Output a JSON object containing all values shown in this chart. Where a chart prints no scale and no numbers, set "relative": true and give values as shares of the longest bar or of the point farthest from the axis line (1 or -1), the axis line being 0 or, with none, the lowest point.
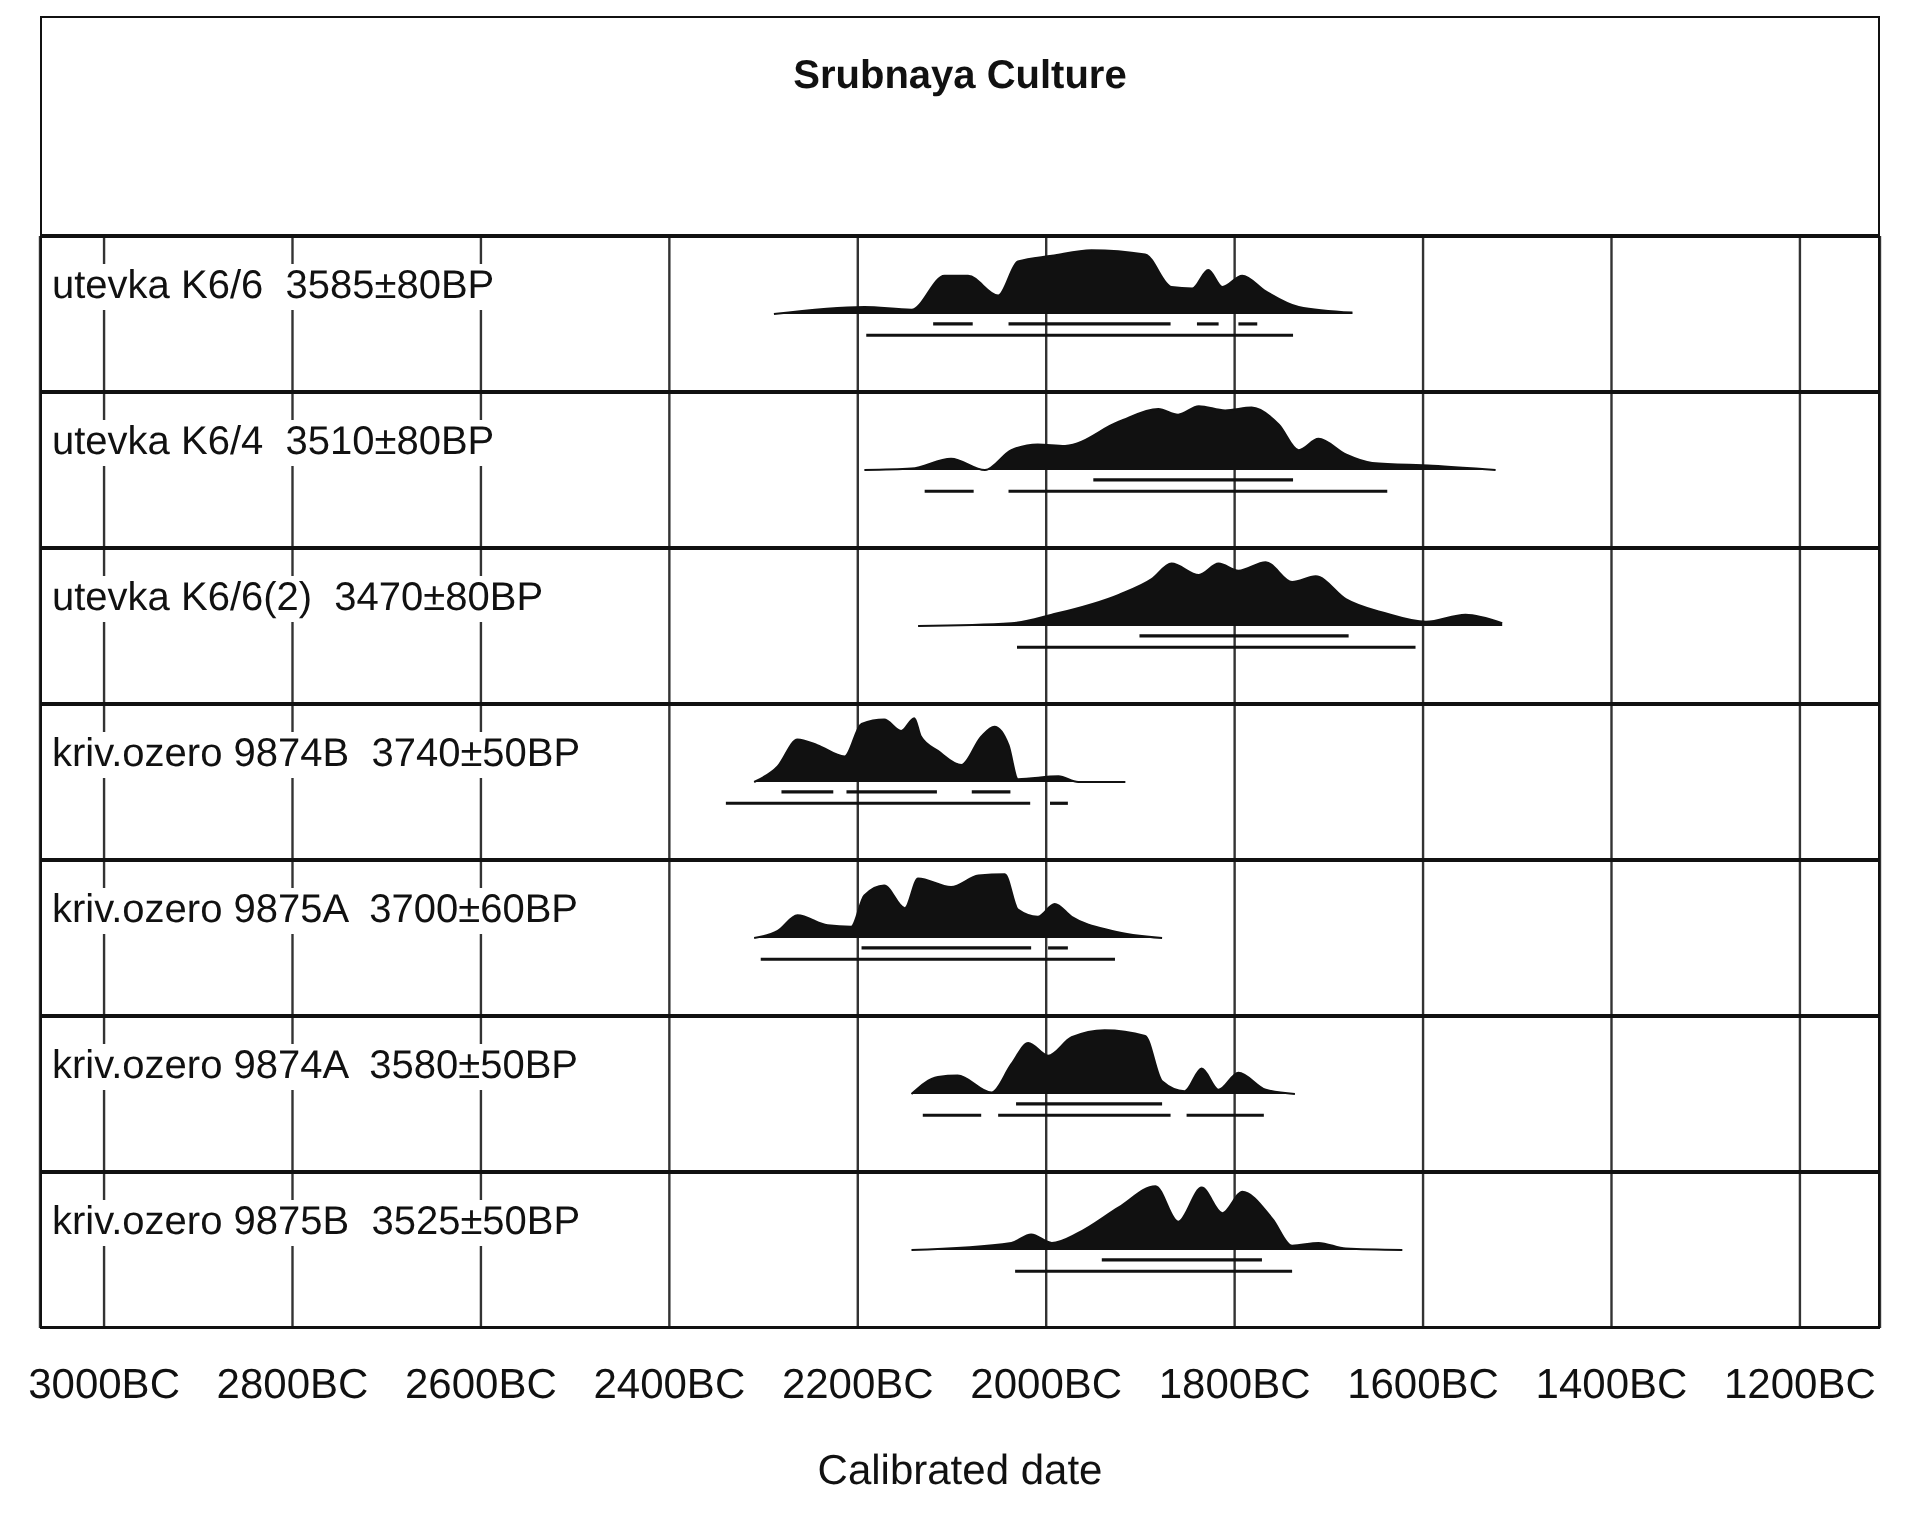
{
  "chart_data": [
    {
      "type": "other",
      "title": "Srubnaya Culture"
    },
    {
      "type": "area",
      "title": "utevka K6/6  3585±80BP",
      "relative": true,
      "grid": "x",
      "tick_labels": false,
      "xlim": [
        -3068,
        -1115
      ],
      "xticks": [
        {
          "value": -3000,
          "label": null
        },
        {
          "value": -2800,
          "label": null
        },
        {
          "value": -2600,
          "label": null
        },
        {
          "value": -2400,
          "label": null
        },
        {
          "value": -2200,
          "label": null
        },
        {
          "value": -2000,
          "label": null
        },
        {
          "value": -1800,
          "label": null
        },
        {
          "value": -1600,
          "label": null
        },
        {
          "value": -1400,
          "label": null
        },
        {
          "value": -1200,
          "label": null
        }
      ],
      "series": [
        {
          "type": "area",
          "color": "#111111",
          "x": [
            -2289,
            -2193,
            -2143,
            -2108,
            -2083,
            -2051,
            -2030,
            -1994,
            -1952,
            -1895,
            -1867,
            -1845,
            -1828,
            -1813,
            -1792,
            -1767,
            -1732,
            -1675
          ],
          "values": [
            0.55,
            0.6,
            0.58,
            0.82,
            0.82,
            0.68,
            0.92,
            0.96,
            1,
            0.97,
            0.74,
            0.73,
            0.86,
            0.74,
            0.82,
            0.71,
            0.6,
            0.56
          ]
        },
        {
          "type": "line",
          "color": "#111111",
          "x": [
            -2120,
            -2078
          ],
          "values": [
            0.48,
            0.48
          ]
        },
        {
          "type": "line",
          "color": "#111111",
          "x": [
            -2040,
            -1868
          ],
          "values": [
            0.48,
            0.48
          ]
        },
        {
          "type": "line",
          "color": "#111111",
          "x": [
            -1840,
            -1817
          ],
          "values": [
            0.48,
            0.48
          ]
        },
        {
          "type": "line",
          "color": "#111111",
          "x": [
            -1796,
            -1776
          ],
          "values": [
            0.48,
            0.48
          ]
        },
        {
          "type": "line",
          "color": "#111111",
          "x": [
            -2191,
            -1738
          ],
          "values": [
            0.4,
            0.4
          ]
        }
      ]
    },
    {
      "type": "area",
      "title": "utevka K6/4  3510±80BP",
      "relative": true,
      "grid": "x",
      "tick_labels": false,
      "xlim": [
        -3068,
        -1115
      ],
      "xticks": [
        {
          "value": -3000,
          "label": null
        },
        {
          "value": -2800,
          "label": null
        },
        {
          "value": -2600,
          "label": null
        },
        {
          "value": -2400,
          "label": null
        },
        {
          "value": -2200,
          "label": null
        },
        {
          "value": -2000,
          "label": null
        },
        {
          "value": -1800,
          "label": null
        },
        {
          "value": -1600,
          "label": null
        },
        {
          "value": -1400,
          "label": null
        },
        {
          "value": -1200,
          "label": null
        }
      ],
      "series": [
        {
          "type": "area",
          "color": "#111111",
          "x": [
            -2193,
            -2143,
            -2101,
            -2065,
            -2037,
            -2009,
            -1980,
            -1923,
            -1881,
            -1860,
            -1838,
            -1810,
            -1782,
            -1753,
            -1732,
            -1711,
            -1682,
            -1654,
            -1590,
            -1523
          ],
          "values": [
            0.55,
            0.56,
            0.63,
            0.55,
            0.69,
            0.73,
            0.72,
            0.89,
            0.98,
            0.94,
            1,
            0.97,
            0.99,
            0.87,
            0.69,
            0.77,
            0.66,
            0.6,
            0.58,
            0.55
          ]
        },
        {
          "type": "line",
          "color": "#111111",
          "x": [
            -1950,
            -1738
          ],
          "values": [
            0.48,
            0.48
          ]
        },
        {
          "type": "line",
          "color": "#111111",
          "x": [
            -2129,
            -2077
          ],
          "values": [
            0.4,
            0.4
          ]
        },
        {
          "type": "line",
          "color": "#111111",
          "x": [
            -2040,
            -1638
          ],
          "values": [
            0.4,
            0.4
          ]
        }
      ]
    },
    {
      "type": "area",
      "title": "utevka K6/6(2)  3470±80BP",
      "relative": true,
      "grid": "x",
      "tick_labels": false,
      "xlim": [
        -3068,
        -1115
      ],
      "xticks": [
        {
          "value": -3000,
          "label": null
        },
        {
          "value": -2800,
          "label": null
        },
        {
          "value": -2600,
          "label": null
        },
        {
          "value": -2400,
          "label": null
        },
        {
          "value": -2200,
          "label": null
        },
        {
          "value": -2000,
          "label": null
        },
        {
          "value": -1800,
          "label": null
        },
        {
          "value": -1600,
          "label": null
        },
        {
          "value": -1400,
          "label": null
        },
        {
          "value": -1200,
          "label": null
        }
      ],
      "series": [
        {
          "type": "area",
          "color": "#111111",
          "x": [
            -2136,
            -2037,
            -1994,
            -1923,
            -1888,
            -1867,
            -1838,
            -1817,
            -1796,
            -1767,
            -1739,
            -1714,
            -1682,
            -1640,
            -1597,
            -1555,
            -1516
          ],
          "values": [
            0.55,
            0.57,
            0.63,
            0.77,
            0.88,
            0.99,
            0.91,
            0.99,
            0.94,
            1,
            0.86,
            0.9,
            0.74,
            0.64,
            0.58,
            0.63,
            0.57
          ]
        },
        {
          "type": "line",
          "color": "#111111",
          "x": [
            -1901,
            -1679
          ],
          "values": [
            0.48,
            0.48
          ]
        },
        {
          "type": "line",
          "color": "#111111",
          "x": [
            -2031,
            -1608
          ],
          "values": [
            0.4,
            0.4
          ]
        }
      ]
    },
    {
      "type": "area",
      "title": "kriv.ozero 9874B  3740±50BP",
      "relative": true,
      "grid": "x",
      "tick_labels": false,
      "xlim": [
        -3068,
        -1115
      ],
      "xticks": [
        {
          "value": -3000,
          "label": null
        },
        {
          "value": -2800,
          "label": null
        },
        {
          "value": -2600,
          "label": null
        },
        {
          "value": -2400,
          "label": null
        },
        {
          "value": -2200,
          "label": null
        },
        {
          "value": -2000,
          "label": null
        },
        {
          "value": -1800,
          "label": null
        },
        {
          "value": -1600,
          "label": null
        },
        {
          "value": -1400,
          "label": null
        },
        {
          "value": -1200,
          "label": null
        }
      ],
      "series": [
        {
          "type": "area",
          "color": "#111111",
          "x": [
            -2310,
            -2285,
            -2264,
            -2243,
            -2214,
            -2196,
            -2172,
            -2154,
            -2140,
            -2133,
            -2115,
            -2090,
            -2069,
            -2055,
            -2040,
            -2030,
            -1987,
            -1966,
            -1916
          ],
          "values": [
            0.55,
            0.66,
            0.85,
            0.81,
            0.73,
            0.96,
            0.99,
            0.91,
            1,
            0.87,
            0.77,
            0.67,
            0.87,
            0.94,
            0.81,
            0.57,
            0.59,
            0.55,
            0.55
          ]
        },
        {
          "type": "line",
          "color": "#111111",
          "x": [
            -2281,
            -2226
          ],
          "values": [
            0.48,
            0.48
          ]
        },
        {
          "type": "line",
          "color": "#111111",
          "x": [
            -2212,
            -2116
          ],
          "values": [
            0.48,
            0.48
          ]
        },
        {
          "type": "line",
          "color": "#111111",
          "x": [
            -2079,
            -2038
          ],
          "values": [
            0.48,
            0.48
          ]
        },
        {
          "type": "line",
          "color": "#111111",
          "x": [
            -2340,
            -2017
          ],
          "values": [
            0.4,
            0.4
          ]
        },
        {
          "type": "line",
          "color": "#111111",
          "x": [
            -1996,
            -1977
          ],
          "values": [
            0.4,
            0.4
          ]
        }
      ]
    },
    {
      "type": "area",
      "title": "kriv.ozero 9875A  3700±60BP",
      "relative": true,
      "grid": "x",
      "tick_labels": false,
      "xlim": [
        -3068,
        -1115
      ],
      "xticks": [
        {
          "value": -3000,
          "label": null
        },
        {
          "value": -2800,
          "label": null
        },
        {
          "value": -2600,
          "label": null
        },
        {
          "value": -2400,
          "label": null
        },
        {
          "value": -2200,
          "label": null
        },
        {
          "value": -2000,
          "label": null
        },
        {
          "value": -1800,
          "label": null
        },
        {
          "value": -1600,
          "label": null
        },
        {
          "value": -1400,
          "label": null
        },
        {
          "value": -1200,
          "label": null
        }
      ],
      "series": [
        {
          "type": "area",
          "color": "#111111",
          "x": [
            -2310,
            -2285,
            -2264,
            -2232,
            -2207,
            -2193,
            -2172,
            -2150,
            -2136,
            -2101,
            -2072,
            -2044,
            -2030,
            -2009,
            -1991,
            -1973,
            -1930,
            -1877
          ],
          "values": [
            0.55,
            0.6,
            0.71,
            0.64,
            0.63,
            0.85,
            0.92,
            0.76,
            0.97,
            0.91,
            0.99,
            1,
            0.75,
            0.7,
            0.79,
            0.7,
            0.6,
            0.55
          ]
        },
        {
          "type": "line",
          "color": "#111111",
          "x": [
            -2196,
            -2016
          ],
          "values": [
            0.48,
            0.48
          ]
        },
        {
          "type": "line",
          "color": "#111111",
          "x": [
            -1998,
            -1977
          ],
          "values": [
            0.48,
            0.48
          ]
        },
        {
          "type": "line",
          "color": "#111111",
          "x": [
            -2303,
            -1927
          ],
          "values": [
            0.4,
            0.4
          ]
        }
      ]
    },
    {
      "type": "area",
      "title": "kriv.ozero 9874A  3580±50BP",
      "relative": true,
      "grid": "x",
      "tick_labels": false,
      "xlim": [
        -3068,
        -1115
      ],
      "xticks": [
        {
          "value": -3000,
          "label": null
        },
        {
          "value": -2800,
          "label": null
        },
        {
          "value": -2600,
          "label": null
        },
        {
          "value": -2400,
          "label": null
        },
        {
          "value": -2200,
          "label": null
        },
        {
          "value": -2000,
          "label": null
        },
        {
          "value": -1800,
          "label": null
        },
        {
          "value": -1600,
          "label": null
        },
        {
          "value": -1400,
          "label": null
        },
        {
          "value": -1200,
          "label": null
        }
      ],
      "series": [
        {
          "type": "area",
          "color": "#111111",
          "x": [
            -2143,
            -2115,
            -2094,
            -2058,
            -2037,
            -2019,
            -1998,
            -1973,
            -1938,
            -1895,
            -1877,
            -1853,
            -1835,
            -1817,
            -1796,
            -1767,
            -1736
          ],
          "values": [
            0.55,
            0.67,
            0.68,
            0.56,
            0.76,
            0.91,
            0.82,
            0.95,
            1,
            0.96,
            0.64,
            0.57,
            0.73,
            0.58,
            0.7,
            0.58,
            0.55
          ]
        },
        {
          "type": "line",
          "color": "#111111",
          "x": [
            -2032,
            -1877
          ],
          "values": [
            0.48,
            0.48
          ]
        },
        {
          "type": "line",
          "color": "#111111",
          "x": [
            -2131,
            -2069
          ],
          "values": [
            0.4,
            0.4
          ]
        },
        {
          "type": "line",
          "color": "#111111",
          "x": [
            -2051,
            -1868
          ],
          "values": [
            0.4,
            0.4
          ]
        },
        {
          "type": "line",
          "color": "#111111",
          "x": [
            -1851,
            -1769
          ],
          "values": [
            0.4,
            0.4
          ]
        }
      ]
    },
    {
      "type": "area",
      "title": "kriv.ozero 9875B  3525±50BP",
      "relative": true,
      "grid": "x",
      "tick_labels": "x",
      "xlabel": "Calibrated date",
      "xlim": [
        -3068,
        -1115
      ],
      "xticks": [
        {
          "value": -3000,
          "label": "3000BC"
        },
        {
          "value": -2800,
          "label": "2800BC"
        },
        {
          "value": -2600,
          "label": "2600BC"
        },
        {
          "value": -2400,
          "label": "2400BC"
        },
        {
          "value": -2200,
          "label": "2200BC"
        },
        {
          "value": -2000,
          "label": "2000BC"
        },
        {
          "value": -1800,
          "label": "1800BC"
        },
        {
          "value": -1600,
          "label": "1600BC"
        },
        {
          "value": -1400,
          "label": "1400BC"
        },
        {
          "value": -1200,
          "label": "1200BC"
        }
      ],
      "series": [
        {
          "type": "area",
          "color": "#111111",
          "x": [
            -2143,
            -2037,
            -2016,
            -1994,
            -1966,
            -1923,
            -1884,
            -1860,
            -1835,
            -1813,
            -1792,
            -1760,
            -1739,
            -1711,
            -1682,
            -1622
          ],
          "values": [
            0.55,
            0.6,
            0.66,
            0.6,
            0.67,
            0.85,
            1,
            0.75,
            0.99,
            0.81,
            0.96,
            0.77,
            0.58,
            0.6,
            0.56,
            0.55
          ]
        },
        {
          "type": "line",
          "color": "#111111",
          "x": [
            -1941,
            -1771
          ],
          "values": [
            0.48,
            0.48
          ]
        },
        {
          "type": "line",
          "color": "#111111",
          "x": [
            -2033,
            -1739
          ],
          "values": [
            0.4,
            0.4
          ]
        }
      ]
    }
  ]
}
